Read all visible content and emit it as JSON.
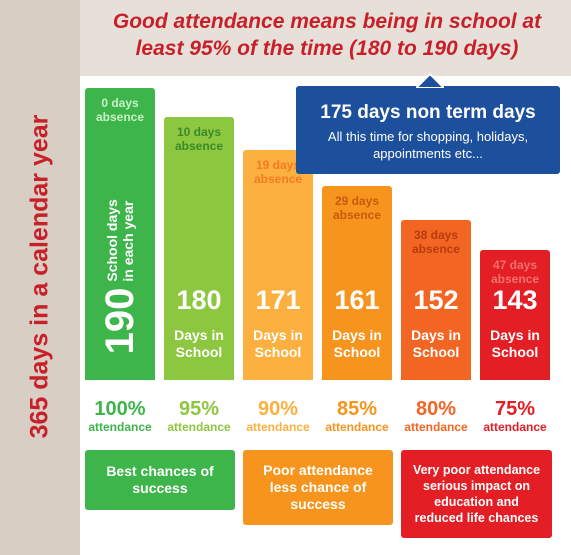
{
  "side_label": "365 days in a calendar year",
  "title": "Good attendance means being in school at least 95% of the time (180 to 190 days)",
  "callout": {
    "heading": "175 days non term days",
    "text": "All this time for shopping, holidays, appointments etc..."
  },
  "columns": [
    {
      "absence": "0 days absence",
      "days": "190",
      "days_label": "School days in each year",
      "percent": "100%",
      "attendance": "attendance"
    },
    {
      "absence": "10 days absence",
      "days": "180",
      "days_label": "Days in School",
      "percent": "95%",
      "attendance": "attendance"
    },
    {
      "absence": "19 days absence",
      "days": "171",
      "days_label": "Days in School",
      "percent": "90%",
      "attendance": "attendance"
    },
    {
      "absence": "29 days absence",
      "days": "161",
      "days_label": "Days in School",
      "percent": "85%",
      "attendance": "attendance"
    },
    {
      "absence": "38 days absence",
      "days": "152",
      "days_label": "Days in School",
      "percent": "80%",
      "attendance": "attendance"
    },
    {
      "absence": "47 days absence",
      "days": "143",
      "days_label": "Days in School",
      "percent": "75%",
      "attendance": "attendance"
    }
  ],
  "outcomes": [
    "Best chances of success",
    "Poor attendance less chance of success",
    "Very poor attendance serious impact on education and reduced life chances"
  ]
}
